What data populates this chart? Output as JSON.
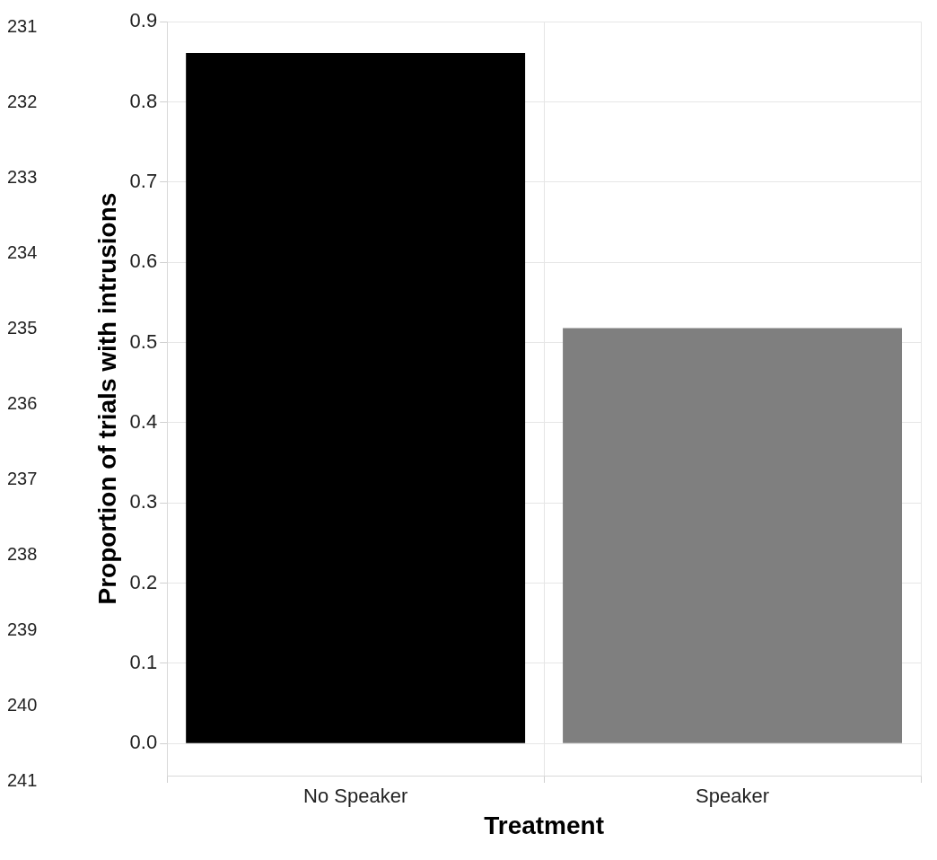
{
  "chart_data": {
    "type": "bar",
    "xlabel": "Treatment",
    "ylabel": "Proportion of trials with intrusions",
    "categories": [
      "No Speaker",
      "Speaker"
    ],
    "values": [
      0.861,
      0.518
    ],
    "colors": [
      "#000000",
      "#7f7f7f"
    ],
    "ylim": [
      -0.04,
      0.9
    ],
    "yticks": [
      {
        "value": 0,
        "label": "0.0"
      },
      0.1,
      0.2,
      0.3,
      0.4,
      0.5,
      0.6,
      0.7,
      0.8,
      0.9
    ],
    "grid": true,
    "annotations": [
      "231",
      "232",
      "233",
      "234",
      "235",
      "236",
      "237",
      "238",
      "239",
      "240",
      "241"
    ]
  }
}
